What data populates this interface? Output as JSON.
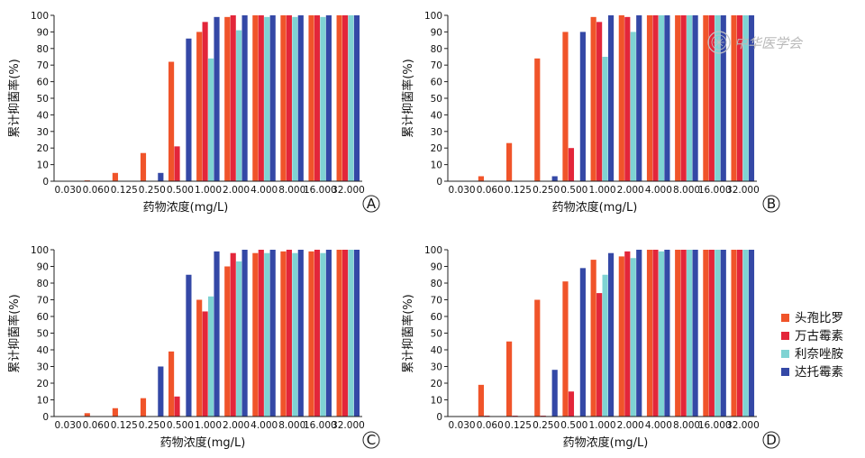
{
  "watermark": {
    "text": "中华医学会"
  },
  "colors": {
    "头孢比罗": "#f0542a",
    "万古霉素": "#e3263a",
    "利奈唑胺": "#7fd3d3",
    "达托霉素": "#3448a6",
    "axis": "#222222"
  },
  "legend": {
    "items": [
      {
        "name": "头孢比罗",
        "color": "#f0542a"
      },
      {
        "name": "万古霉素",
        "color": "#e3263a"
      },
      {
        "name": "利奈唑胺",
        "color": "#7fd3d3"
      },
      {
        "name": "达托霉素",
        "color": "#3448a6"
      }
    ]
  },
  "chart_data": [
    {
      "type": "bar",
      "panel": "A",
      "xlabel": "药物浓度(mg/L)",
      "ylabel": "累计抑菌率(%)",
      "ylim": [
        0,
        100
      ],
      "yticks": [
        0,
        10,
        20,
        30,
        40,
        50,
        60,
        70,
        80,
        90,
        100
      ],
      "categories": [
        "0.030",
        "0.060",
        "0.125",
        "0.250",
        "0.500",
        "1.000",
        "2.000",
        "4.000",
        "8.000",
        "16.000",
        "32.000"
      ],
      "series": [
        {
          "name": "头孢比罗",
          "values": [
            0,
            0.5,
            5,
            17,
            72,
            90,
            99,
            100,
            100,
            100,
            100
          ]
        },
        {
          "name": "万古霉素",
          "values": [
            0,
            0,
            0,
            0,
            21,
            96,
            100,
            100,
            100,
            100,
            100
          ]
        },
        {
          "name": "利奈唑胺",
          "values": [
            0,
            0,
            0,
            0,
            0,
            74,
            91,
            99,
            99,
            99,
            100
          ]
        },
        {
          "name": "达托霉素",
          "values": [
            0,
            0,
            0,
            5,
            86,
            99,
            100,
            100,
            100,
            100,
            100
          ]
        }
      ]
    },
    {
      "type": "bar",
      "panel": "B",
      "xlabel": "药物浓度(mg/L)",
      "ylabel": "累计抑菌率(%)",
      "ylim": [
        0,
        100
      ],
      "yticks": [
        0,
        10,
        20,
        30,
        40,
        50,
        60,
        70,
        80,
        90,
        100
      ],
      "categories": [
        "0.030",
        "0.060",
        "0.125",
        "0.250",
        "0.500",
        "1.000",
        "2.000",
        "4.000",
        "8.000",
        "16.000",
        "32.000"
      ],
      "series": [
        {
          "name": "头孢比罗",
          "values": [
            0,
            3,
            23,
            74,
            90,
            99,
            100,
            100,
            100,
            100,
            100
          ]
        },
        {
          "name": "万古霉素",
          "values": [
            0,
            0,
            0,
            0,
            20,
            96,
            99,
            100,
            100,
            100,
            100
          ]
        },
        {
          "name": "利奈唑胺",
          "values": [
            0,
            0,
            0,
            0,
            0,
            75,
            90,
            100,
            100,
            100,
            100
          ]
        },
        {
          "name": "达托霉素",
          "values": [
            0,
            0,
            0,
            3,
            90,
            100,
            100,
            100,
            100,
            100,
            100
          ]
        }
      ]
    },
    {
      "type": "bar",
      "panel": "C",
      "xlabel": "药物浓度(mg/L)",
      "ylabel": "累计抑菌率(%)",
      "ylim": [
        0,
        100
      ],
      "yticks": [
        0,
        10,
        20,
        30,
        40,
        50,
        60,
        70,
        80,
        90,
        100
      ],
      "categories": [
        "0.030",
        "0.060",
        "0.125",
        "0.250",
        "0.500",
        "1.000",
        "2.000",
        "4.000",
        "8.000",
        "16.000",
        "32.000"
      ],
      "series": [
        {
          "name": "头孢比罗",
          "values": [
            0,
            2,
            5,
            11,
            39,
            70,
            90,
            98,
            99,
            99,
            100
          ]
        },
        {
          "name": "万古霉素",
          "values": [
            0,
            0,
            0,
            0,
            12,
            63,
            98,
            100,
            100,
            100,
            100
          ]
        },
        {
          "name": "利奈唑胺",
          "values": [
            0,
            0,
            0,
            0,
            0,
            72,
            93,
            98,
            98,
            98,
            100
          ]
        },
        {
          "name": "达托霉素",
          "values": [
            0,
            0,
            0,
            30,
            85,
            99,
            100,
            100,
            100,
            100,
            100
          ]
        }
      ]
    },
    {
      "type": "bar",
      "panel": "D",
      "xlabel": "药物浓度(mg/L)",
      "ylabel": "累计抑菌率(%)",
      "ylim": [
        0,
        100
      ],
      "yticks": [
        0,
        10,
        20,
        30,
        40,
        50,
        60,
        70,
        80,
        90,
        100
      ],
      "categories": [
        "0.030",
        "0.060",
        "0.125",
        "0.250",
        "0.500",
        "1.000",
        "2.000",
        "4.000",
        "8.000",
        "16.000",
        "32.000"
      ],
      "series": [
        {
          "name": "头孢比罗",
          "values": [
            0,
            19,
            45,
            70,
            81,
            94,
            96,
            100,
            100,
            100,
            100
          ]
        },
        {
          "name": "万古霉素",
          "values": [
            0,
            0.5,
            0.5,
            0.5,
            15,
            74,
            99,
            100,
            100,
            100,
            100
          ]
        },
        {
          "name": "利奈唑胺",
          "values": [
            0,
            0,
            0,
            0,
            0,
            85,
            95,
            99,
            100,
            100,
            100
          ]
        },
        {
          "name": "达托霉素",
          "values": [
            0,
            0,
            0,
            28,
            89,
            98,
            100,
            100,
            100,
            100,
            100
          ]
        }
      ]
    }
  ]
}
